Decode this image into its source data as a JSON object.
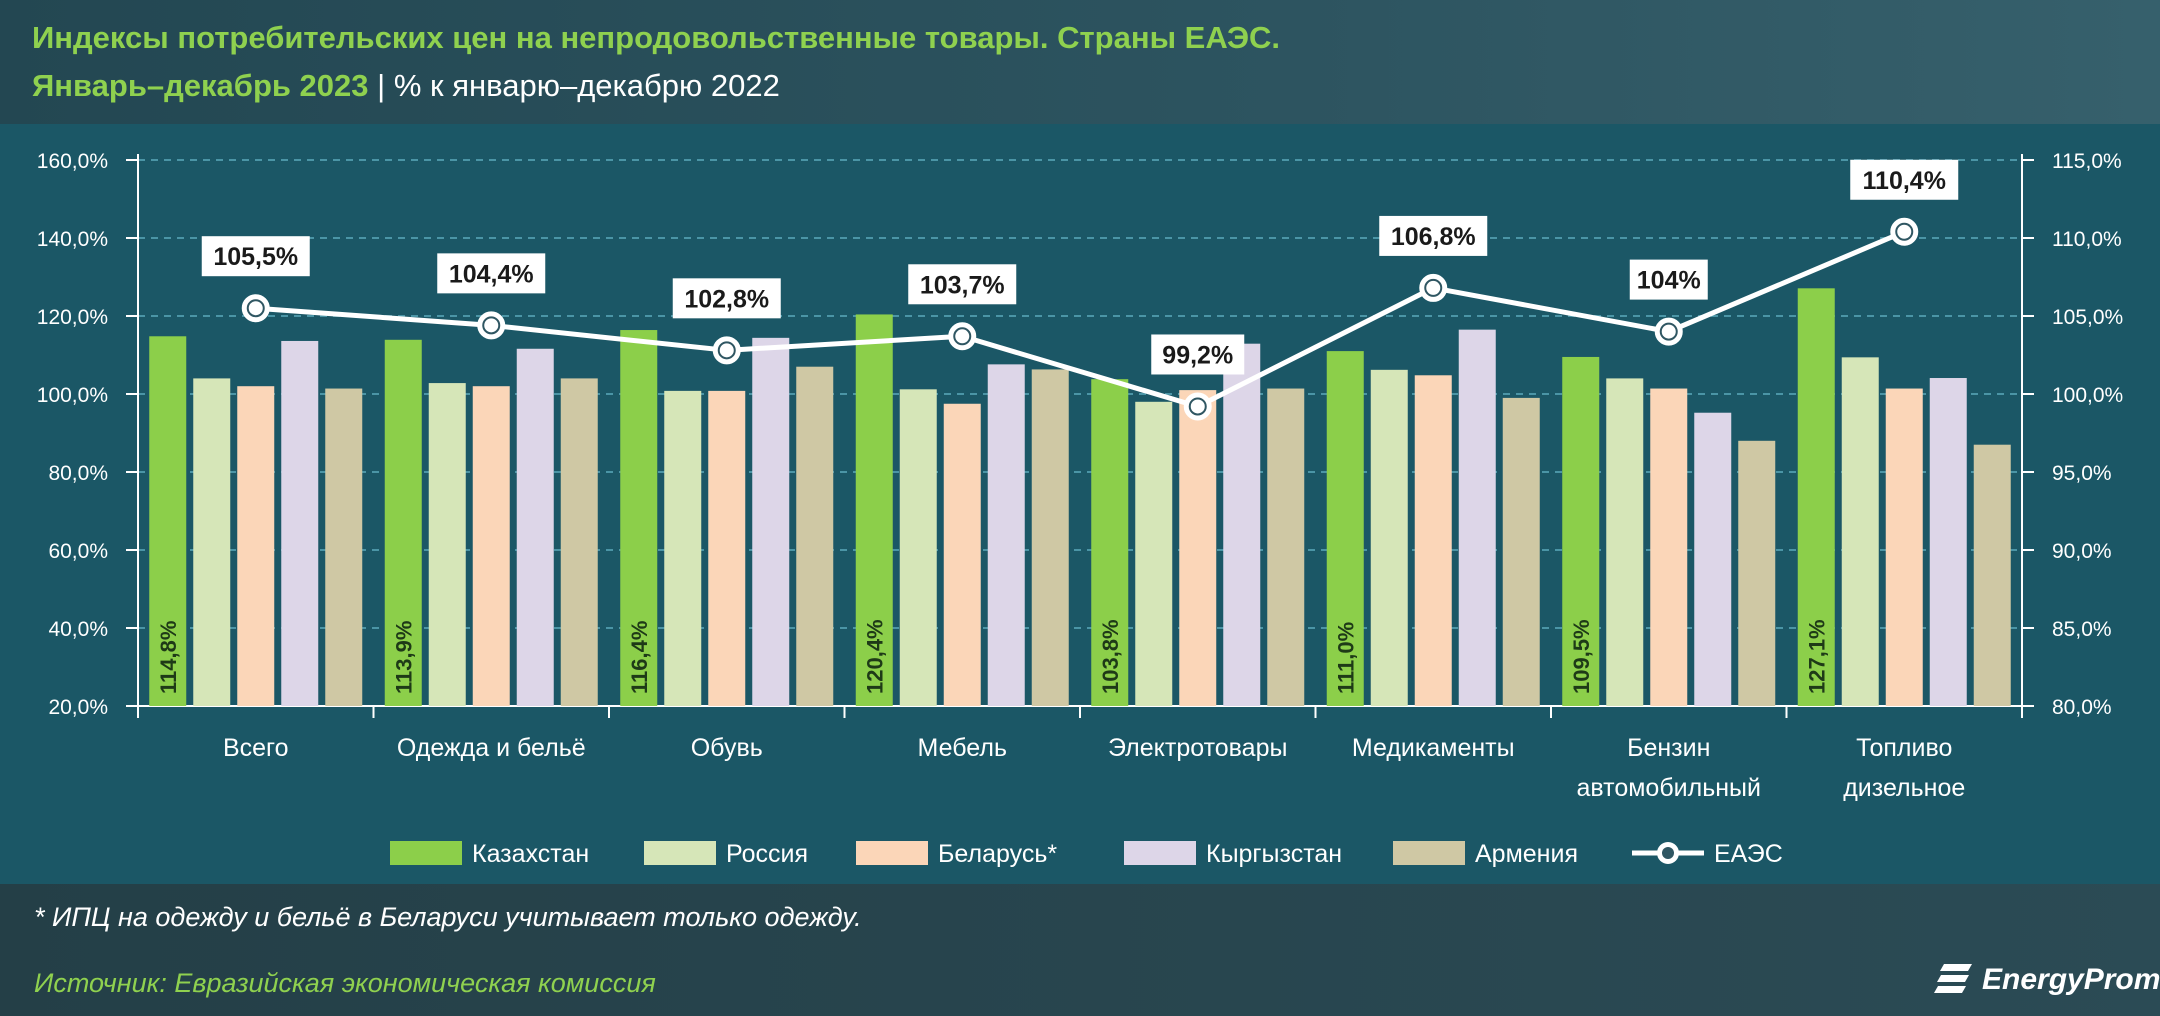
{
  "header": {
    "title": "Индексы потребительских цен на непродовольственные товары. Страны ЕАЭС.",
    "subtitle": "Январь–декабрь 2023",
    "separator": "|",
    "subtitle2": "% к январю–декабрю 2022"
  },
  "footnote": "* ИПЦ на одежду и бельё в Беларуси учитывает только одежду.",
  "source": "Источник: Евразийская экономическая комиссия",
  "logo": {
    "text": "EnergyProm",
    "icon": "energyprom-logo-icon"
  },
  "colors": {
    "kazakhstan": "#8ccf4a",
    "russia": "#d6e6b8",
    "belarus": "#fbd6b8",
    "kyrgyzstan": "#ddd6e8",
    "armenia": "#cfc8a4",
    "eaes": "#ffffff",
    "grid": "#4b95a6",
    "title": "#8fd14f"
  },
  "chart_data": {
    "type": "bar",
    "categories": [
      [
        "Всего"
      ],
      [
        "Одежда и бельё"
      ],
      [
        "Обувь"
      ],
      [
        "Мебель"
      ],
      [
        "Электротовары"
      ],
      [
        "Медикаменты"
      ],
      [
        "Бензин",
        "автомобильный"
      ],
      [
        "Топливо",
        "дизельное"
      ]
    ],
    "series": [
      {
        "name": "Казахстан",
        "key": "kazakhstan",
        "values": [
          114.8,
          113.9,
          116.4,
          120.4,
          103.8,
          111.0,
          109.5,
          127.1
        ],
        "labels": [
          "114,8%",
          "113,9%",
          "116,4%",
          "120,4%",
          "103,8%",
          "111,0%",
          "109,5%",
          "127,1%"
        ]
      },
      {
        "name": "Россия",
        "key": "russia",
        "values": [
          104.0,
          102.8,
          100.8,
          101.2,
          98.0,
          106.2,
          104.0,
          109.4
        ]
      },
      {
        "name": "Беларусь*",
        "key": "belarus",
        "values": [
          102.0,
          102.0,
          100.8,
          97.5,
          101.0,
          104.8,
          101.4,
          101.4
        ]
      },
      {
        "name": "Кыргызстан",
        "key": "kyrgyzstan",
        "values": [
          113.6,
          111.6,
          114.4,
          107.6,
          112.9,
          116.5,
          95.2,
          104.1
        ]
      },
      {
        "name": "Армения",
        "key": "armenia",
        "values": [
          101.4,
          104.0,
          107.0,
          106.3,
          101.4,
          99.0,
          88.0,
          87.0
        ]
      }
    ],
    "line_series": {
      "name": "ЕАЭС",
      "key": "eaes",
      "values": [
        105.5,
        104.4,
        102.8,
        103.7,
        99.2,
        106.8,
        104.0,
        110.4
      ],
      "labels": [
        "105,5%",
        "104,4%",
        "102,8%",
        "103,7%",
        "99,2%",
        "106,8%",
        "104%",
        "110,4%"
      ]
    },
    "y_left": {
      "min": 20,
      "max": 160,
      "step": 20,
      "ticks": [
        "20,0%",
        "40,0%",
        "60,0%",
        "80,0%",
        "100,0%",
        "120,0%",
        "140,0%",
        "160,0%"
      ]
    },
    "y_right": {
      "min": 80,
      "max": 115,
      "step": 5,
      "ticks": [
        "80,0%",
        "85,0%",
        "90,0%",
        "95,0%",
        "100,0%",
        "105,0%",
        "110,0%",
        "115,0%"
      ]
    },
    "legend": [
      {
        "label": "Казахстан",
        "key": "kazakhstan",
        "kind": "bar"
      },
      {
        "label": "Россия",
        "key": "russia",
        "kind": "bar"
      },
      {
        "label": "Беларусь*",
        "key": "belarus",
        "kind": "bar"
      },
      {
        "label": "Кыргызстан",
        "key": "kyrgyzstan",
        "kind": "bar"
      },
      {
        "label": "Армения",
        "key": "armenia",
        "kind": "bar"
      },
      {
        "label": "ЕАЭС",
        "key": "eaes",
        "kind": "line"
      }
    ],
    "legend_position": "bottom",
    "grid": true
  }
}
